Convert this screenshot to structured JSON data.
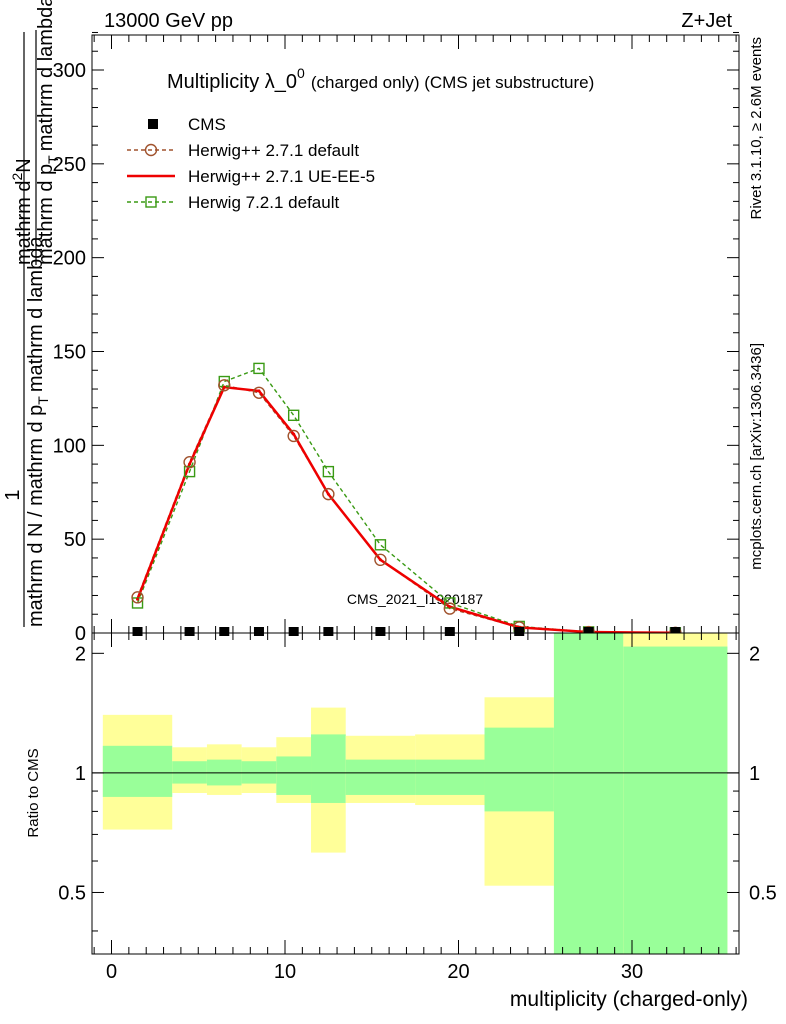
{
  "header": {
    "left": "13000 GeV pp",
    "right": "Z+Jet"
  },
  "side_text": {
    "rivet": "Rivet 3.1.10, ≥ 2.6M events",
    "mcplots": "mcplots.cern.ch [arXiv:1306.3436]"
  },
  "colors": {
    "cms": "#000000",
    "herwig_pp_default": "#a0522d",
    "herwig_pp_ueee5": "#ee0000",
    "herwig_721": "#3a9a14",
    "band_inner": "#99ff99",
    "band_outer": "#ffff99"
  },
  "chart_data": [
    {
      "type": "line",
      "title_main": "Multiplicity λ_0",
      "title_sup": "0",
      "title_suffix": "(charged only) (CMS jet substructure)",
      "ylabel_prefix": "1",
      "ylabel_line1": "mathrm d N / mathrm d p",
      "ylabel_sub1": "T",
      "ylabel_line2": "mathrm d N",
      "ylabel_numerator": "mathrm d",
      "ylabel_numerator_sup": "2",
      "ylabel_numerator_N": "N",
      "ylabel_denominator": "mathrm d p",
      "ylabel_denominator_sub": "T",
      "ylabel_denominator_tail": "mathrm d lambda",
      "ylim": [
        0,
        320
      ],
      "xlim": [
        -1,
        36
      ],
      "yticks": [
        "0",
        "50",
        "100",
        "150",
        "200",
        "250",
        "300"
      ],
      "watermark": "CMS_2021_I1920187",
      "legend": [
        "CMS",
        "Herwig++ 2.7.1 default",
        "Herwig++ 2.7.1 UE-EE-5",
        "Herwig 7.2.1 default"
      ],
      "series": [
        {
          "name": "CMS",
          "x": [
            1.5,
            4.5,
            6.5,
            8.5,
            10.5,
            12.5,
            15.5,
            19.5,
            23.5,
            27.5,
            32.5
          ],
          "values": [
            0.5,
            0.5,
            0.5,
            0.5,
            0.5,
            0.5,
            0.5,
            0.5,
            0.3,
            0.1,
            0.05
          ]
        },
        {
          "name": "Herwig++ 2.7.1 default",
          "x": [
            1.5,
            4.5,
            6.5,
            8.5,
            10.5,
            12.5,
            15.5,
            19.5,
            23.5,
            27.5,
            32.5
          ],
          "values": [
            19,
            91,
            132,
            128,
            105,
            74,
            39,
            13,
            3,
            0.5,
            0.1
          ]
        },
        {
          "name": "Herwig++ 2.7.1 UE-EE-5",
          "x": [
            1.5,
            4.5,
            6.5,
            8.5,
            10.5,
            12.5,
            15.5,
            19.5,
            23.5,
            27.5,
            32.5
          ],
          "values": [
            18,
            90,
            131,
            129,
            106,
            74,
            39,
            14,
            3,
            0.5,
            0.1
          ]
        },
        {
          "name": "Herwig 7.2.1 default",
          "x": [
            1.5,
            4.5,
            6.5,
            8.5,
            10.5,
            12.5,
            15.5,
            19.5,
            23.5,
            27.5,
            32.5
          ],
          "values": [
            16,
            86,
            134,
            141,
            116,
            86,
            47,
            16,
            3.5,
            0.6,
            0.1
          ]
        }
      ]
    },
    {
      "type": "area",
      "ylabel": "Ratio to CMS",
      "xlabel": "multiplicity (charged-only)",
      "ylim": [
        0.35,
        2.25
      ],
      "xlim": [
        -1,
        36
      ],
      "xticks": [
        "0",
        "10",
        "20",
        "30"
      ],
      "yticks": [
        "0.5",
        "1",
        "2"
      ],
      "bins": [
        {
          "lo": -0.5,
          "hi": 3.5,
          "inner": [
            0.87,
            1.17
          ],
          "outer": [
            0.72,
            1.4
          ]
        },
        {
          "lo": 3.5,
          "hi": 5.5,
          "inner": [
            0.94,
            1.07
          ],
          "outer": [
            0.89,
            1.16
          ]
        },
        {
          "lo": 5.5,
          "hi": 7.5,
          "inner": [
            0.93,
            1.08
          ],
          "outer": [
            0.88,
            1.18
          ]
        },
        {
          "lo": 7.5,
          "hi": 9.5,
          "inner": [
            0.94,
            1.07
          ],
          "outer": [
            0.89,
            1.16
          ]
        },
        {
          "lo": 9.5,
          "hi": 11.5,
          "inner": [
            0.88,
            1.1
          ],
          "outer": [
            0.84,
            1.23
          ]
        },
        {
          "lo": 11.5,
          "hi": 13.5,
          "inner": [
            0.84,
            1.25
          ],
          "outer": [
            0.63,
            1.46
          ]
        },
        {
          "lo": 13.5,
          "hi": 17.5,
          "inner": [
            0.88,
            1.08
          ],
          "outer": [
            0.84,
            1.24
          ]
        },
        {
          "lo": 17.5,
          "hi": 21.5,
          "inner": [
            0.88,
            1.08
          ],
          "outer": [
            0.83,
            1.25
          ]
        },
        {
          "lo": 21.5,
          "hi": 25.5,
          "inner": [
            0.8,
            1.3
          ],
          "outer": [
            0.52,
            1.55
          ]
        },
        {
          "lo": 25.5,
          "hi": 29.5,
          "inner": [
            0.35,
            2.25
          ],
          "outer": [
            0.35,
            2.25
          ]
        },
        {
          "lo": 29.5,
          "hi": 35.5,
          "inner": [
            0.35,
            2.08
          ],
          "outer": [
            0.35,
            2.25
          ]
        }
      ]
    }
  ]
}
